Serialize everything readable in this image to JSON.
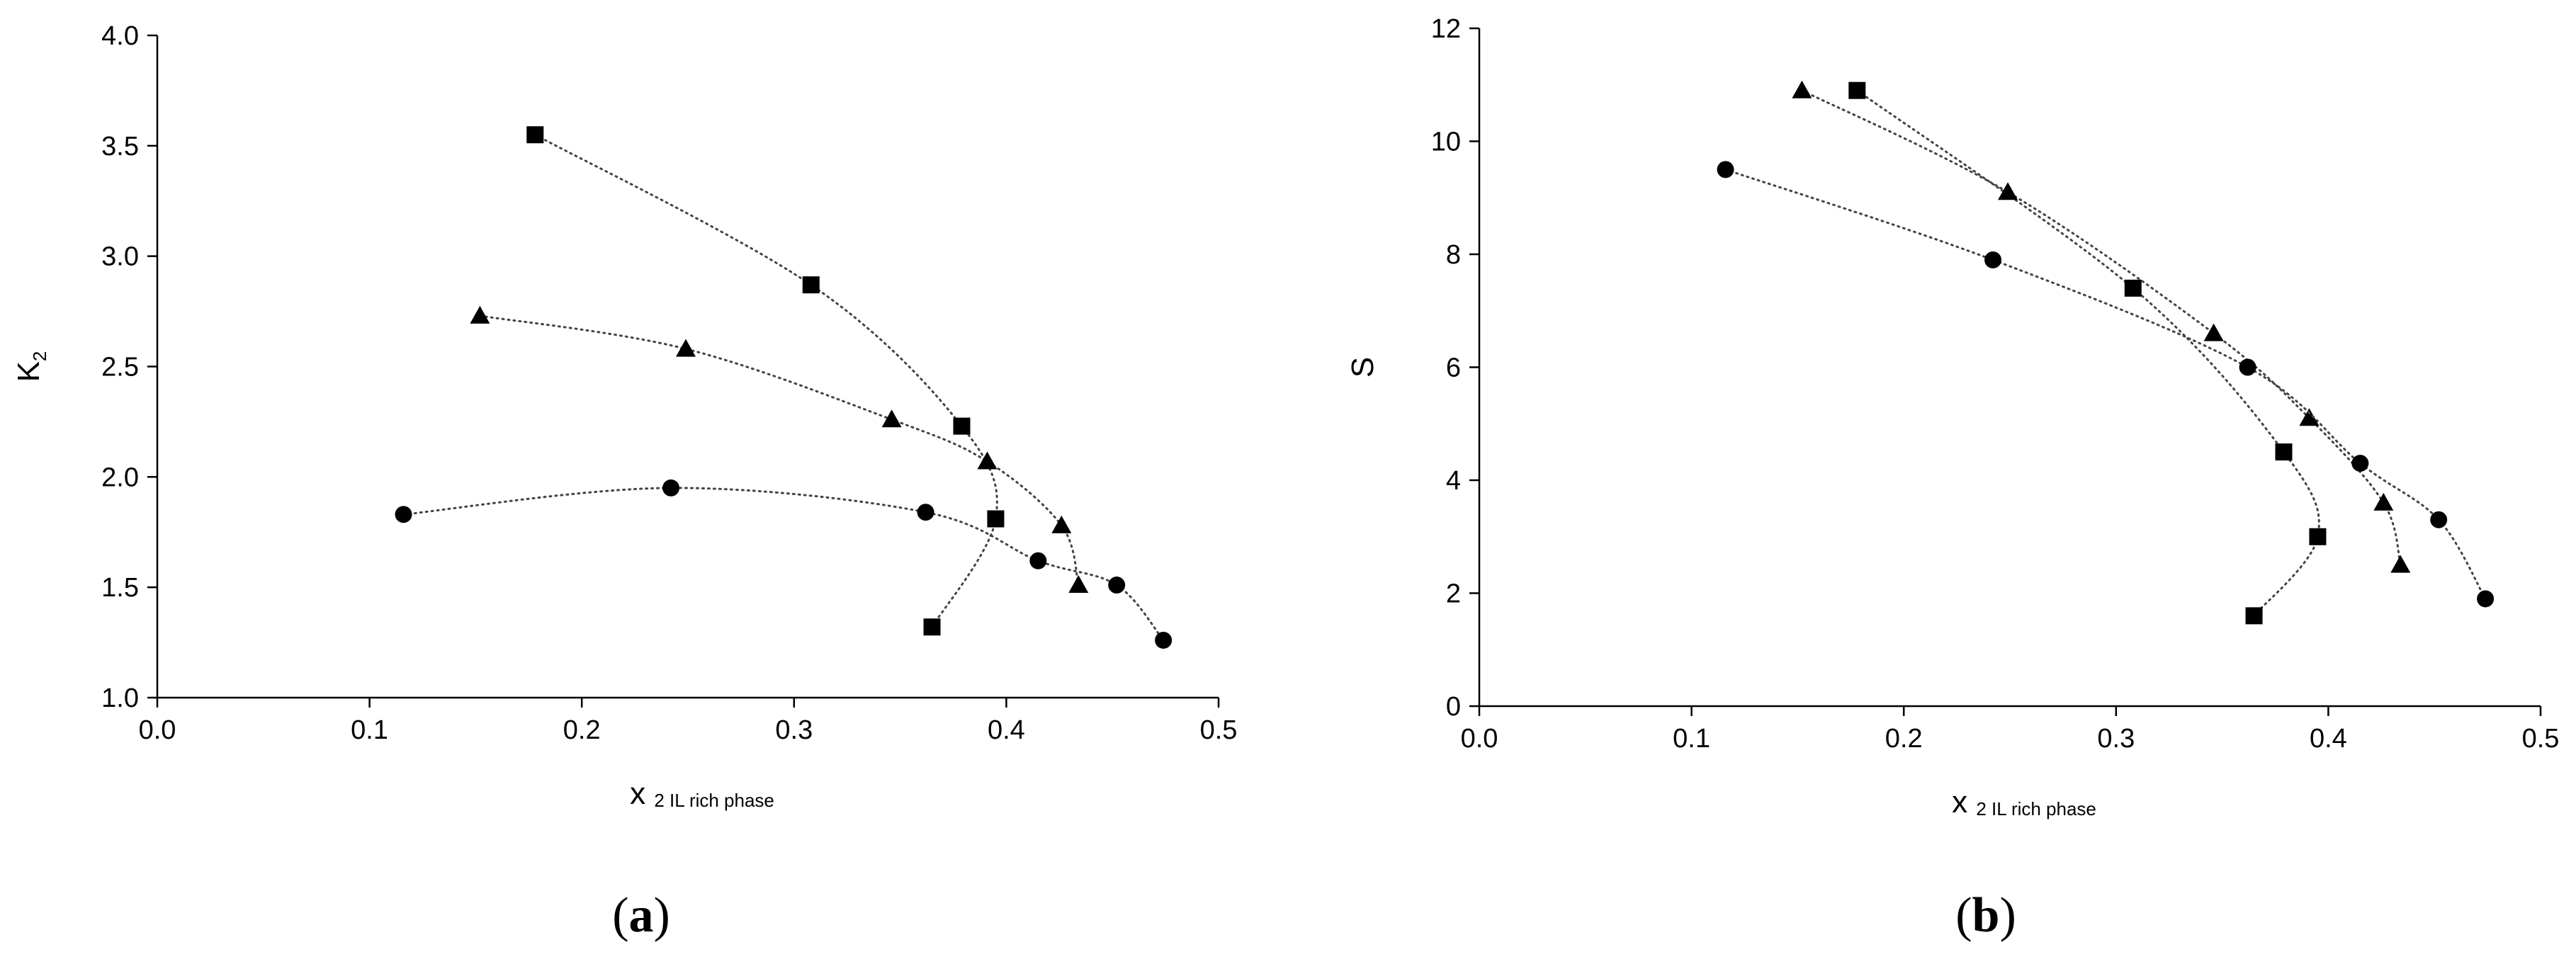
{
  "chart_data": [
    {
      "type": "scatter",
      "panel_label": {
        "open": "(",
        "letter": "a",
        "close": ")"
      },
      "xlabel": {
        "main": "x",
        "sub": "2 IL rich phase"
      },
      "ylabel": {
        "main": "K",
        "sub": "2"
      },
      "xlim": [
        0.0,
        0.5
      ],
      "ylim": [
        1.0,
        4.0
      ],
      "xticks": [
        "0.0",
        "0.1",
        "0.2",
        "0.3",
        "0.4",
        "0.5"
      ],
      "yticks": [
        "1.0",
        "1.5",
        "2.0",
        "2.5",
        "3.0",
        "3.5",
        "4.0"
      ],
      "grid": false,
      "series": [
        {
          "marker": "square",
          "x": [
            0.178,
            0.308,
            0.379,
            0.395,
            0.365
          ],
          "y": [
            3.55,
            2.87,
            2.23,
            1.81,
            1.32
          ]
        },
        {
          "marker": "triangle",
          "x": [
            0.152,
            0.249,
            0.346,
            0.391,
            0.426,
            0.434
          ],
          "y": [
            2.73,
            2.58,
            2.26,
            2.07,
            1.78,
            1.51
          ]
        },
        {
          "marker": "circle",
          "x": [
            0.116,
            0.242,
            0.362,
            0.415,
            0.452,
            0.474
          ],
          "y": [
            1.83,
            1.95,
            1.84,
            1.62,
            1.51,
            1.26
          ]
        }
      ]
    },
    {
      "type": "scatter",
      "panel_label": {
        "open": "(",
        "letter": "b",
        "close": ")"
      },
      "xlabel": {
        "main": "x",
        "sub": "2 IL rich phase"
      },
      "ylabel": {
        "main": "S",
        "sub": ""
      },
      "xlim": [
        0.0,
        0.5
      ],
      "ylim": [
        0,
        12
      ],
      "xticks": [
        "0.0",
        "0.1",
        "0.2",
        "0.3",
        "0.4",
        "0.5"
      ],
      "yticks": [
        "0",
        "2",
        "4",
        "6",
        "8",
        "10",
        "12"
      ],
      "grid": false,
      "series": [
        {
          "marker": "square",
          "x": [
            0.178,
            0.308,
            0.379,
            0.395,
            0.365
          ],
          "y": [
            10.9,
            7.4,
            4.5,
            3.0,
            1.6
          ]
        },
        {
          "marker": "triangle",
          "x": [
            0.152,
            0.249,
            0.346,
            0.391,
            0.426,
            0.434
          ],
          "y": [
            10.9,
            9.1,
            6.6,
            5.1,
            3.6,
            2.5
          ]
        },
        {
          "marker": "circle",
          "x": [
            0.116,
            0.242,
            0.362,
            0.415,
            0.452,
            0.474
          ],
          "y": [
            9.5,
            7.9,
            6.0,
            4.3,
            3.3,
            1.9
          ]
        }
      ]
    }
  ]
}
